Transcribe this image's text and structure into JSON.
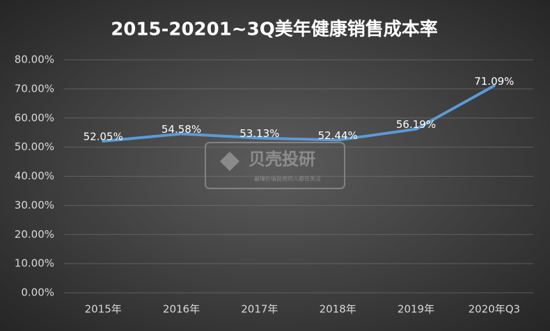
{
  "chart_data": {
    "type": "line",
    "title": "2015-20201~3Q美年健康销售成本率",
    "categories": [
      "2015年",
      "2016年",
      "2017年",
      "2018年",
      "2019年",
      "2020年Q3"
    ],
    "values": [
      52.05,
      54.58,
      53.13,
      52.44,
      56.19,
      71.09
    ],
    "value_labels": [
      "52.05%",
      "54.58%",
      "53.13%",
      "52.44%",
      "56.19%",
      "71.09%"
    ],
    "color": "#5b9bd5",
    "ylim": [
      0,
      80
    ],
    "yticks": [
      {
        "value": 0,
        "label": "0.00%"
      },
      {
        "value": 10,
        "label": "10.00%"
      },
      {
        "value": 20,
        "label": "20.00%"
      },
      {
        "value": 30,
        "label": "30.00%"
      },
      {
        "value": 40,
        "label": "40.00%"
      },
      {
        "value": 50,
        "label": "50.00%"
      },
      {
        "value": 60,
        "label": "60.00%"
      },
      {
        "value": 70,
        "label": "70.00%"
      },
      {
        "value": 80,
        "label": "80.00%"
      }
    ],
    "grid": true
  },
  "watermark": {
    "title": "贝壳投研",
    "subtitle": "最懂价值投资的人都在关注"
  }
}
